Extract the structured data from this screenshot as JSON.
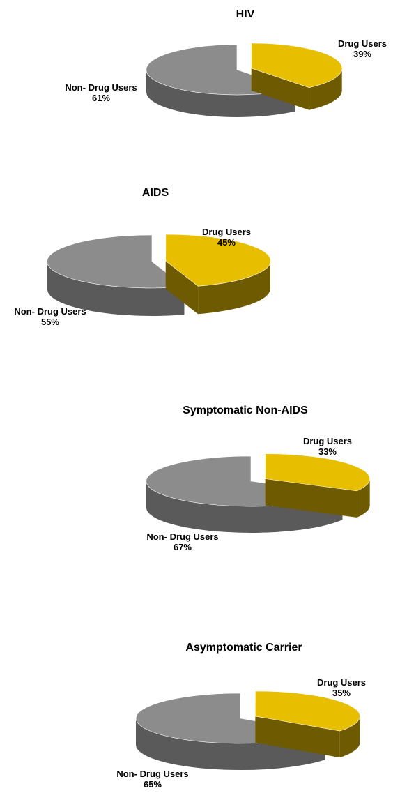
{
  "colors": {
    "drug_top": "#E8BE00",
    "drug_side": "#6E5A00",
    "nondrug_top": "#8C8C8C",
    "nondrug_side": "#5A5A5A"
  },
  "chart_data": [
    {
      "type": "pie",
      "title": "HIV",
      "categories": [
        "Drug Users",
        "Non- Drug Users"
      ],
      "values": [
        39,
        61
      ],
      "labels": [
        {
          "name": "Drug Users",
          "pct": "39%"
        },
        {
          "name": "Non- Drug Users",
          "pct": "61%"
        }
      ]
    },
    {
      "type": "pie",
      "title": "AIDS",
      "categories": [
        "Drug Users",
        "Non- Drug Users"
      ],
      "values": [
        45,
        55
      ],
      "labels": [
        {
          "name": "Drug Users",
          "pct": "45%"
        },
        {
          "name": "Non- Drug Users",
          "pct": "55%"
        }
      ]
    },
    {
      "type": "pie",
      "title": "Symptomatic Non-AIDS",
      "categories": [
        "Drug Users",
        "Non- Drug Users"
      ],
      "values": [
        33,
        67
      ],
      "labels": [
        {
          "name": "Drug Users",
          "pct": "33%"
        },
        {
          "name": "Non- Drug Users",
          "pct": "67%"
        }
      ]
    },
    {
      "type": "pie",
      "title": "Asymptomatic Carrier",
      "categories": [
        "Drug Users",
        "Non- Drug Users"
      ],
      "values": [
        35,
        65
      ],
      "labels": [
        {
          "name": "Drug Users",
          "pct": "35%"
        },
        {
          "name": "Non- Drug Users",
          "pct": "65%"
        }
      ]
    }
  ]
}
